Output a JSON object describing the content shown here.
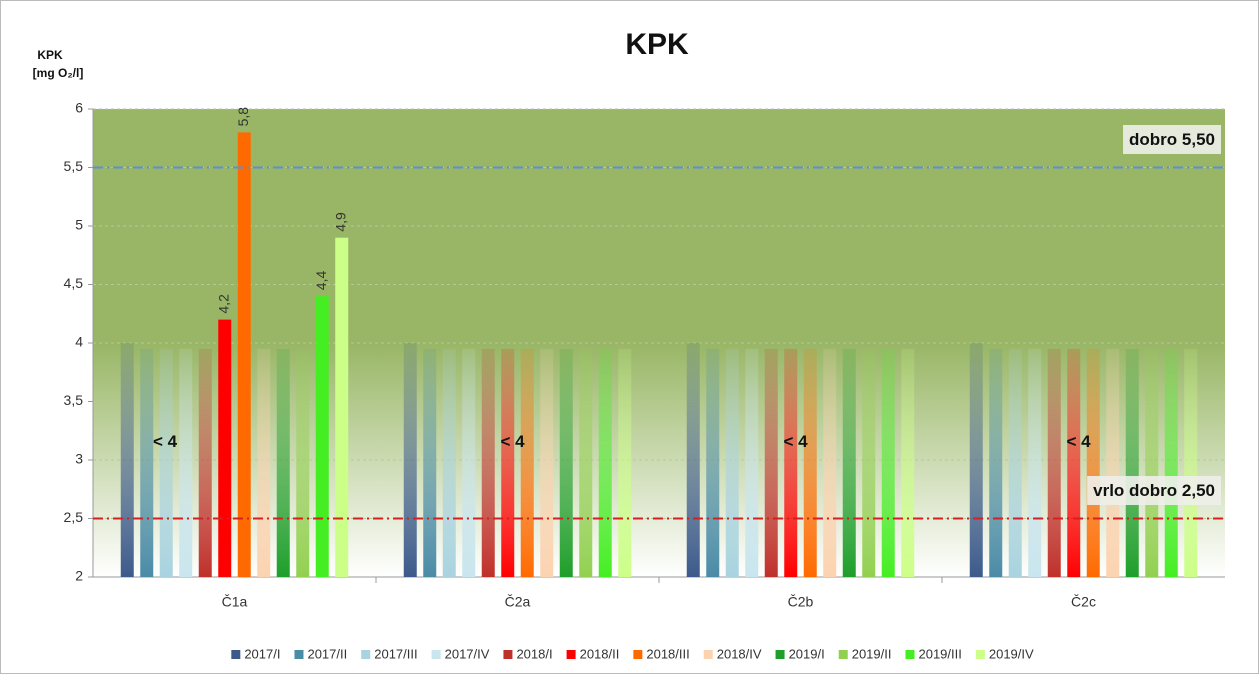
{
  "chart_data": {
    "type": "bar",
    "title": "KPK",
    "y_label": [
      "KPK",
      "[mg O₂/l]"
    ],
    "categories": [
      "Č1a",
      "Č2a",
      "Č2b",
      "Č2c"
    ],
    "series": [
      {
        "name": "2017/I",
        "color": "#3c5a8a",
        "values": [
          4,
          4,
          4,
          4
        ],
        "value_labels": [
          null,
          null,
          null,
          null
        ]
      },
      {
        "name": "2017/II",
        "color": "#4a8ba6",
        "values": [
          3.95,
          3.95,
          3.95,
          3.95
        ],
        "value_labels": [
          null,
          null,
          null,
          null
        ]
      },
      {
        "name": "2017/III",
        "color": "#a9d3df",
        "values": [
          3.95,
          3.95,
          3.95,
          3.95
        ],
        "value_labels": [
          null,
          null,
          null,
          null
        ]
      },
      {
        "name": "2017/IV",
        "color": "#c9e5ee",
        "values": [
          3.95,
          3.95,
          3.95,
          3.95
        ],
        "value_labels": [
          null,
          null,
          null,
          null
        ]
      },
      {
        "name": "2018/I",
        "color": "#c0302a",
        "values": [
          3.95,
          3.95,
          3.95,
          3.95
        ],
        "value_labels": [
          null,
          null,
          null,
          null
        ]
      },
      {
        "name": "2018/II",
        "color": "#ff0000",
        "values": [
          4.2,
          3.95,
          3.95,
          3.95
        ],
        "value_labels": [
          "4,2",
          null,
          null,
          null
        ]
      },
      {
        "name": "2018/III",
        "color": "#ff6a00",
        "values": [
          5.8,
          3.95,
          3.95,
          3.95
        ],
        "value_labels": [
          "5,8",
          null,
          null,
          null
        ]
      },
      {
        "name": "2018/IV",
        "color": "#fbd3b0",
        "values": [
          3.95,
          3.95,
          3.95,
          3.95
        ],
        "value_labels": [
          null,
          null,
          null,
          null
        ]
      },
      {
        "name": "2019/I",
        "color": "#1e9e2a",
        "values": [
          3.95,
          3.95,
          3.95,
          3.95
        ],
        "value_labels": [
          null,
          null,
          null,
          null
        ]
      },
      {
        "name": "2019/II",
        "color": "#92d050",
        "values": [
          3.95,
          3.95,
          3.95,
          3.95
        ],
        "value_labels": [
          null,
          null,
          null,
          null
        ]
      },
      {
        "name": "2019/III",
        "color": "#44ee22",
        "values": [
          4.4,
          3.95,
          3.95,
          3.95
        ],
        "value_labels": [
          "4,4",
          null,
          null,
          null
        ]
      },
      {
        "name": "2019/IV",
        "color": "#ccff88",
        "values": [
          4.9,
          3.95,
          3.95,
          3.95
        ],
        "value_labels": [
          "4,9",
          null,
          null,
          null
        ]
      }
    ],
    "annotations": [
      "< 4",
      "< 4",
      "< 4",
      "< 4"
    ],
    "reference_lines": [
      {
        "value": 5.5,
        "label": "dobro 5,50",
        "color": "#5b8fd6"
      },
      {
        "value": 2.5,
        "label": "vrlo dobro 2,50",
        "color": "#d42020"
      }
    ],
    "ylim": [
      2,
      6
    ],
    "yticks": [
      2,
      {
        "value": 2.5,
        "label": "2,5"
      },
      3,
      {
        "value": 3.5,
        "label": "3,5"
      },
      4,
      {
        "value": 4.5,
        "label": "4,5"
      },
      5,
      {
        "value": 5.5,
        "label": "5,5"
      },
      6
    ],
    "grid": true,
    "legend": "bottom"
  }
}
